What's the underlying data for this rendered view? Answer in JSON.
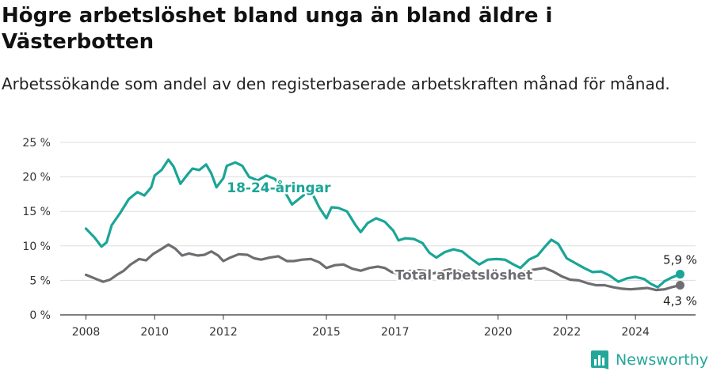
{
  "title": "Högre arbetslöshet bland unga än bland äldre i Västerbotten",
  "subtitle": "Arbetssökande som andel av den registerbaserade arbetskraften månad för månad.",
  "brand": {
    "name": "Newsworthy",
    "icon": "newsworthy-logo-icon",
    "color": "#24a79b"
  },
  "chart_data": {
    "type": "line",
    "title": "Högre arbetslöshet bland unga än bland äldre i Västerbotten",
    "subtitle": "Arbetssökande som andel av den registerbaserade arbetskraften månad för månad.",
    "xlabel": "",
    "ylabel": "",
    "xlim": [
      2007.25,
      2025.75
    ],
    "ylim": [
      0,
      25
    ],
    "x_ticks": [
      2008,
      2010,
      2012,
      2015,
      2017,
      2020,
      2022,
      2024
    ],
    "x_tick_labels": [
      "2008",
      "2010",
      "2012",
      "2015",
      "2017",
      "2020",
      "2022",
      "2024"
    ],
    "y_ticks": [
      0,
      5,
      10,
      15,
      20,
      25
    ],
    "y_tick_labels": [
      "0 %",
      "5 %",
      "10 %",
      "15 %",
      "20 %",
      "25 %"
    ],
    "grid": true,
    "series": [
      {
        "name": "18-24-åringar",
        "color": "#1aa597",
        "end_label": "5,9 %",
        "points": [
          [
            2008.0,
            12.5
          ],
          [
            2008.25,
            11.2
          ],
          [
            2008.45,
            9.9
          ],
          [
            2008.6,
            10.5
          ],
          [
            2008.75,
            13.0
          ],
          [
            2009.0,
            14.8
          ],
          [
            2009.25,
            16.8
          ],
          [
            2009.5,
            17.8
          ],
          [
            2009.7,
            17.3
          ],
          [
            2009.9,
            18.5
          ],
          [
            2010.0,
            20.2
          ],
          [
            2010.2,
            21.0
          ],
          [
            2010.4,
            22.5
          ],
          [
            2010.55,
            21.5
          ],
          [
            2010.75,
            19.0
          ],
          [
            2010.95,
            20.3
          ],
          [
            2011.1,
            21.2
          ],
          [
            2011.3,
            21.0
          ],
          [
            2011.5,
            21.8
          ],
          [
            2011.65,
            20.5
          ],
          [
            2011.8,
            18.5
          ],
          [
            2012.0,
            19.8
          ],
          [
            2012.1,
            21.6
          ],
          [
            2012.35,
            22.1
          ],
          [
            2012.55,
            21.6
          ],
          [
            2012.75,
            20.0
          ],
          [
            2013.0,
            19.5
          ],
          [
            2013.25,
            20.2
          ],
          [
            2013.5,
            19.7
          ],
          [
            2013.75,
            18.2
          ],
          [
            2014.0,
            16.0
          ],
          [
            2014.2,
            16.8
          ],
          [
            2014.45,
            17.8
          ],
          [
            2014.6,
            17.5
          ],
          [
            2014.8,
            15.5
          ],
          [
            2015.0,
            14.0
          ],
          [
            2015.15,
            15.6
          ],
          [
            2015.35,
            15.5
          ],
          [
            2015.6,
            15.0
          ],
          [
            2015.85,
            13.0
          ],
          [
            2016.0,
            12.0
          ],
          [
            2016.2,
            13.3
          ],
          [
            2016.45,
            14.0
          ],
          [
            2016.7,
            13.5
          ],
          [
            2016.95,
            12.2
          ],
          [
            2017.1,
            10.8
          ],
          [
            2017.3,
            11.1
          ],
          [
            2017.55,
            11.0
          ],
          [
            2017.8,
            10.4
          ],
          [
            2018.0,
            9.0
          ],
          [
            2018.2,
            8.3
          ],
          [
            2018.45,
            9.1
          ],
          [
            2018.7,
            9.5
          ],
          [
            2018.95,
            9.2
          ],
          [
            2019.2,
            8.2
          ],
          [
            2019.45,
            7.3
          ],
          [
            2019.7,
            8.0
          ],
          [
            2019.95,
            8.1
          ],
          [
            2020.2,
            8.0
          ],
          [
            2020.45,
            7.3
          ],
          [
            2020.65,
            6.8
          ],
          [
            2020.9,
            8.0
          ],
          [
            2021.15,
            8.6
          ],
          [
            2021.35,
            9.8
          ],
          [
            2021.55,
            10.9
          ],
          [
            2021.75,
            10.3
          ],
          [
            2022.0,
            8.2
          ],
          [
            2022.25,
            7.5
          ],
          [
            2022.5,
            6.8
          ],
          [
            2022.75,
            6.2
          ],
          [
            2023.0,
            6.3
          ],
          [
            2023.25,
            5.7
          ],
          [
            2023.5,
            4.8
          ],
          [
            2023.75,
            5.3
          ],
          [
            2024.0,
            5.5
          ],
          [
            2024.25,
            5.2
          ],
          [
            2024.45,
            4.5
          ],
          [
            2024.65,
            4.0
          ],
          [
            2024.85,
            4.9
          ],
          [
            2025.05,
            5.4
          ],
          [
            2025.3,
            5.9
          ]
        ]
      },
      {
        "name": "Total arbetslöshet",
        "color": "#6e6e72",
        "end_label": "4,3 %",
        "points": [
          [
            2008.0,
            5.8
          ],
          [
            2008.3,
            5.2
          ],
          [
            2008.5,
            4.8
          ],
          [
            2008.7,
            5.1
          ],
          [
            2008.9,
            5.8
          ],
          [
            2009.1,
            6.4
          ],
          [
            2009.3,
            7.3
          ],
          [
            2009.55,
            8.1
          ],
          [
            2009.75,
            7.9
          ],
          [
            2009.95,
            8.8
          ],
          [
            2010.15,
            9.4
          ],
          [
            2010.4,
            10.2
          ],
          [
            2010.6,
            9.6
          ],
          [
            2010.8,
            8.6
          ],
          [
            2011.0,
            8.9
          ],
          [
            2011.25,
            8.6
          ],
          [
            2011.45,
            8.7
          ],
          [
            2011.65,
            9.2
          ],
          [
            2011.85,
            8.6
          ],
          [
            2012.0,
            7.8
          ],
          [
            2012.2,
            8.3
          ],
          [
            2012.45,
            8.8
          ],
          [
            2012.7,
            8.7
          ],
          [
            2012.9,
            8.2
          ],
          [
            2013.1,
            8.0
          ],
          [
            2013.35,
            8.3
          ],
          [
            2013.6,
            8.5
          ],
          [
            2013.85,
            7.8
          ],
          [
            2014.05,
            7.8
          ],
          [
            2014.3,
            8.0
          ],
          [
            2014.55,
            8.1
          ],
          [
            2014.8,
            7.6
          ],
          [
            2015.0,
            6.8
          ],
          [
            2015.25,
            7.2
          ],
          [
            2015.5,
            7.3
          ],
          [
            2015.75,
            6.7
          ],
          [
            2016.0,
            6.4
          ],
          [
            2016.25,
            6.8
          ],
          [
            2016.5,
            7.0
          ],
          [
            2016.7,
            6.8
          ],
          [
            2016.9,
            6.2
          ],
          [
            2017.1,
            6.0
          ],
          [
            2017.35,
            6.3
          ],
          [
            2017.6,
            6.5
          ],
          [
            2017.85,
            6.4
          ],
          [
            2018.1,
            6.0
          ],
          [
            2018.35,
            6.3
          ],
          [
            2018.6,
            6.6
          ],
          [
            2018.85,
            6.4
          ],
          [
            2019.1,
            6.0
          ],
          [
            2019.35,
            5.8
          ],
          [
            2019.6,
            6.1
          ],
          [
            2019.85,
            6.2
          ],
          [
            2020.1,
            6.0
          ],
          [
            2020.35,
            5.7
          ],
          [
            2020.6,
            6.0
          ],
          [
            2020.85,
            6.4
          ],
          [
            2021.1,
            6.6
          ],
          [
            2021.35,
            6.8
          ],
          [
            2021.6,
            6.3
          ],
          [
            2021.85,
            5.6
          ],
          [
            2022.1,
            5.1
          ],
          [
            2022.35,
            5.0
          ],
          [
            2022.6,
            4.6
          ],
          [
            2022.85,
            4.3
          ],
          [
            2023.1,
            4.3
          ],
          [
            2023.35,
            4.0
          ],
          [
            2023.6,
            3.8
          ],
          [
            2023.85,
            3.7
          ],
          [
            2024.1,
            3.8
          ],
          [
            2024.35,
            3.9
          ],
          [
            2024.6,
            3.6
          ],
          [
            2024.85,
            3.7
          ],
          [
            2025.05,
            4.0
          ],
          [
            2025.3,
            4.3
          ]
        ]
      }
    ]
  }
}
